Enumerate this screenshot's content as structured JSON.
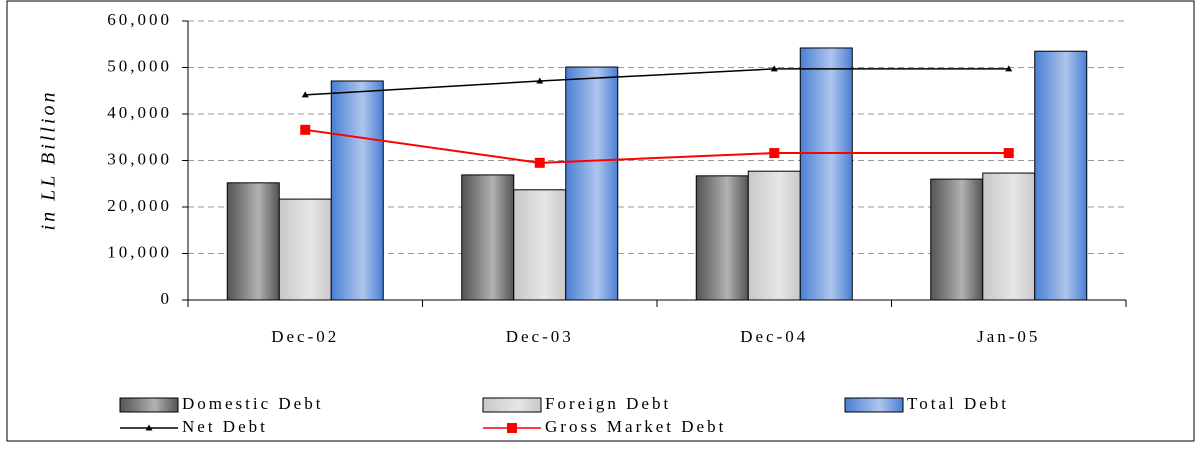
{
  "chart_data": {
    "type": "bar",
    "ylabel": "in LL Billion",
    "categories": [
      "Dec-02",
      "Dec-03",
      "Dec-04",
      "Jan-05"
    ],
    "series": [
      {
        "name": "Domestic Debt",
        "type": "bar",
        "color": "#555555",
        "values": [
          25200,
          26900,
          26700,
          26000
        ]
      },
      {
        "name": "Foreign Debt",
        "type": "bar",
        "color": "#c8c8c8",
        "values": [
          21700,
          23700,
          27700,
          27300
        ]
      },
      {
        "name": "Total Debt",
        "type": "bar",
        "color": "#4a7fd4",
        "values": [
          47100,
          50100,
          54200,
          53500
        ]
      },
      {
        "name": "Net Debt",
        "type": "line",
        "color": "#000000",
        "marker": "triangle",
        "values": [
          44100,
          47100,
          49700,
          49700
        ]
      },
      {
        "name": "Gross Market Debt",
        "type": "line",
        "color": "#ff0000",
        "marker": "square",
        "values": [
          36600,
          29500,
          31600,
          31600
        ]
      }
    ],
    "ylim": [
      0,
      60000
    ],
    "yticks": [
      0,
      {
        "value": 10000,
        "label": "10,000"
      },
      {
        "value": 20000,
        "label": "20,000"
      },
      {
        "value": 30000,
        "label": "30,000"
      },
      {
        "value": 40000,
        "label": "40,000"
      },
      {
        "value": 50000,
        "label": "50,000"
      },
      {
        "value": 60000,
        "label": "60,000"
      }
    ],
    "grid": true
  }
}
